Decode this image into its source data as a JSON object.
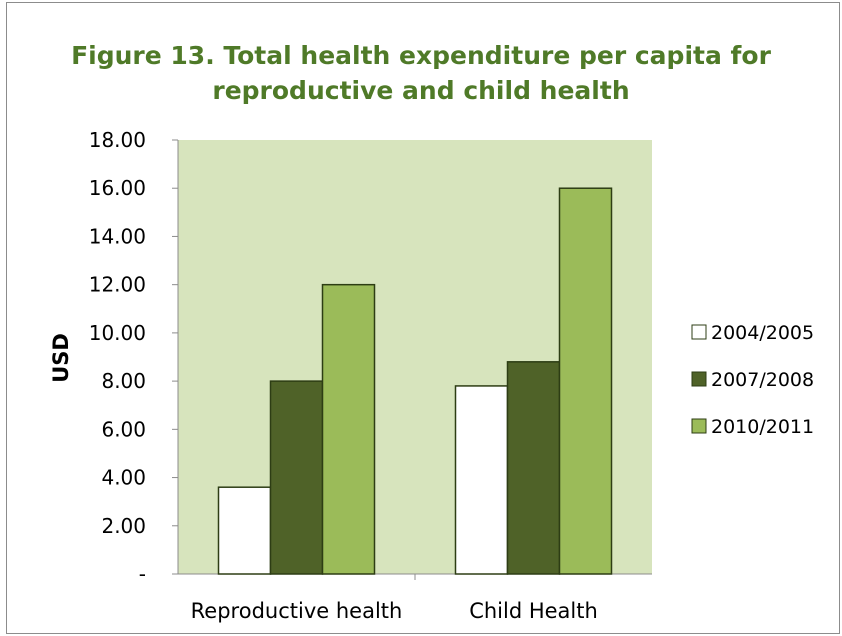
{
  "chart_data": {
    "type": "bar",
    "title_lines": [
      "Figure 13. Total health expenditure per capita for",
      "reproductive and child health"
    ],
    "ylabel": "USD",
    "xlabel": "",
    "categories": [
      "Reproductive health",
      "Child Health"
    ],
    "series": [
      {
        "name": "2004/2005",
        "values": [
          3.6,
          7.8
        ],
        "color": "#ffffff"
      },
      {
        "name": "2007/2008",
        "values": [
          8.0,
          8.8
        ],
        "color": "#4f6228"
      },
      {
        "name": "2010/2011",
        "values": [
          12.0,
          16.0
        ],
        "color": "#9bbb59"
      }
    ],
    "ylim": [
      0,
      18
    ],
    "yticks": [
      0,
      2,
      4,
      6,
      8,
      10,
      12,
      14,
      16,
      18
    ],
    "ytick_labels": [
      "-",
      "2.00",
      "4.00",
      "6.00",
      "8.00",
      "10.00",
      "12.00",
      "14.00",
      "16.00",
      "18.00"
    ],
    "plot_background": "#d7e4bd",
    "bar_outline": "#2d3d14",
    "legend_position": "right",
    "grid": false
  }
}
